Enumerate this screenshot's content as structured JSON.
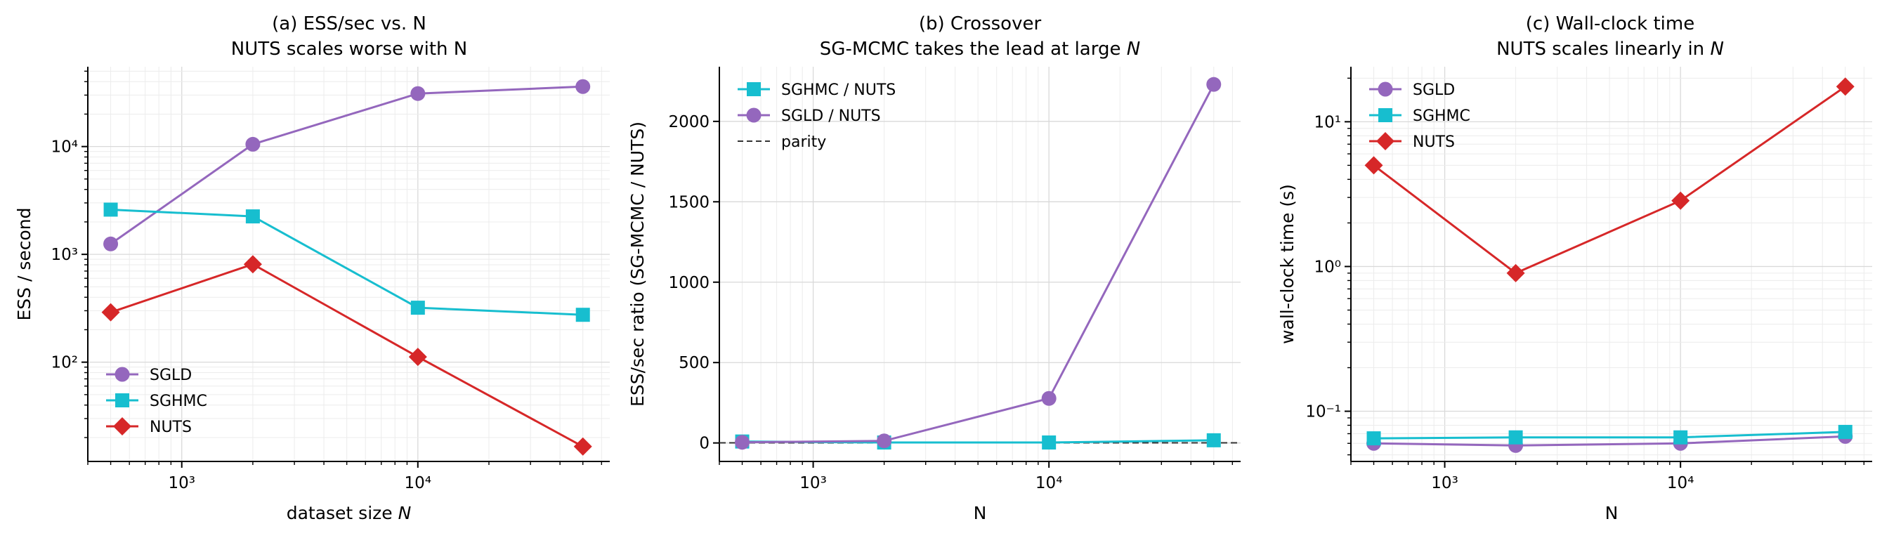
{
  "chart_data": [
    {
      "type": "line",
      "title_line1": "(a) ESS/sec vs. N",
      "title_line2": "NUTS scales worse with N",
      "xlabel": "dataset size N",
      "ylabel": "ESS / second",
      "xscale": "log",
      "yscale": "log",
      "xlim": [
        400,
        65000
      ],
      "ylim": [
        12,
        55000
      ],
      "grid": true,
      "legend_position": "lower-left",
      "x": [
        500,
        2000,
        10000,
        50000
      ],
      "series": [
        {
          "name": "SGLD",
          "values": [
            1250,
            10500,
            31000,
            36000
          ],
          "color": "#9467bd",
          "marker": "circle"
        },
        {
          "name": "SGHMC",
          "values": [
            2600,
            2250,
            320,
            275
          ],
          "color": "#17becf",
          "marker": "square"
        },
        {
          "name": "NUTS",
          "values": [
            290,
            810,
            112,
            16.5
          ],
          "color": "#d62728",
          "marker": "diamond"
        }
      ]
    },
    {
      "type": "line",
      "title_line1": "(b) Crossover",
      "title_line2": "SG-MCMC takes the lead at large N",
      "xlabel": "N",
      "ylabel": "ESS/sec ratio (SG-MCMC / NUTS)",
      "xscale": "log",
      "yscale": "linear",
      "xlim": [
        400,
        65000
      ],
      "ylim": [
        -115,
        2340
      ],
      "yticks": [
        0,
        500,
        1000,
        1500,
        2000
      ],
      "grid": true,
      "legend_position": "upper-left",
      "x": [
        500,
        2000,
        10000,
        50000
      ],
      "series": [
        {
          "name": "SGHMC / NUTS",
          "values": [
            9,
            2.8,
            2.9,
            16.7
          ],
          "color": "#17becf",
          "marker": "square"
        },
        {
          "name": "SGLD / NUTS",
          "values": [
            4.3,
            13,
            277,
            2230
          ],
          "color": "#9467bd",
          "marker": "circle"
        }
      ],
      "reference_line": {
        "name": "parity",
        "value": 1,
        "color": "#333333",
        "style": "dashed"
      }
    },
    {
      "type": "line",
      "title_line1": "(c) Wall-clock time",
      "title_line2": "NUTS scales linearly in N",
      "xlabel": "N",
      "ylabel": "wall-clock time (s)",
      "xscale": "log",
      "yscale": "log",
      "xlim": [
        400,
        65000
      ],
      "ylim": [
        0.045,
        24
      ],
      "grid": true,
      "legend_position": "upper-left",
      "x": [
        500,
        2000,
        10000,
        50000
      ],
      "series": [
        {
          "name": "SGLD",
          "values": [
            0.06,
            0.058,
            0.06,
            0.067
          ],
          "color": "#9467bd",
          "marker": "circle"
        },
        {
          "name": "SGHMC",
          "values": [
            0.065,
            0.066,
            0.066,
            0.072
          ],
          "color": "#17becf",
          "marker": "square"
        },
        {
          "name": "NUTS",
          "values": [
            5.0,
            0.9,
            2.85,
            17.5
          ],
          "color": "#d62728",
          "marker": "diamond"
        }
      ]
    }
  ]
}
